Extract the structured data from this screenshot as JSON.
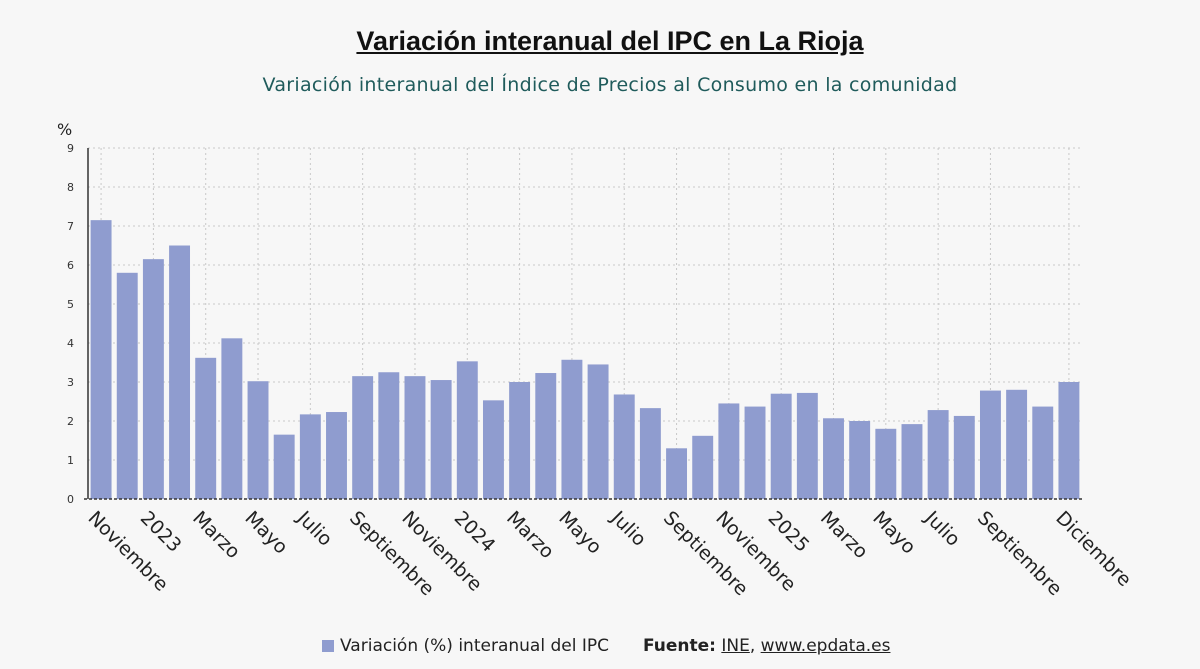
{
  "header": {
    "title": "Variación interanual del IPC en La Rioja",
    "subtitle": "Variación interanual del Índice de Precios al Consumo en la comunidad"
  },
  "legend": {
    "series_label": "Variación (%) interanual del IPC",
    "source_label": "Fuente:",
    "source_ine": "INE",
    "source_sep": ", ",
    "source_site": "www.epdata.es"
  },
  "colors": {
    "bar": "#8f9ccf",
    "grid": "#c8c8c8",
    "axis": "#333333"
  },
  "chart_data": {
    "type": "bar",
    "ylabel": "%",
    "ylim": [
      0,
      9
    ],
    "yticks": [
      0,
      1,
      2,
      3,
      4,
      5,
      6,
      7,
      8,
      9
    ],
    "grid": true,
    "legend_position": "bottom",
    "x_tick_labels": [
      "Noviembre",
      "2023",
      "Marzo",
      "Mayo",
      "Julio",
      "Septiembre",
      "Noviembre",
      "2024",
      "Marzo",
      "Mayo",
      "Julio",
      "Septiembre",
      "Noviembre",
      "2025",
      "Marzo",
      "Mayo",
      "Julio",
      "Septiembre",
      "Diciembre"
    ],
    "x_tick_bar_index": [
      0,
      2,
      4,
      6,
      8,
      10,
      12,
      14,
      16,
      18,
      20,
      22,
      24,
      26,
      28,
      30,
      32,
      34,
      37
    ],
    "series": [
      {
        "name": "Variación (%) interanual del IPC",
        "values": [
          7.15,
          5.8,
          6.15,
          6.5,
          3.62,
          4.12,
          3.02,
          1.65,
          2.17,
          2.23,
          3.15,
          3.25,
          3.15,
          3.05,
          3.53,
          2.53,
          3.0,
          3.23,
          3.57,
          3.45,
          2.68,
          2.33,
          1.3,
          1.62,
          2.45,
          2.37,
          2.7,
          2.72,
          2.07,
          2.0,
          1.8,
          1.92,
          2.28,
          2.13,
          2.78,
          2.8,
          2.37,
          3.0
        ]
      }
    ]
  }
}
